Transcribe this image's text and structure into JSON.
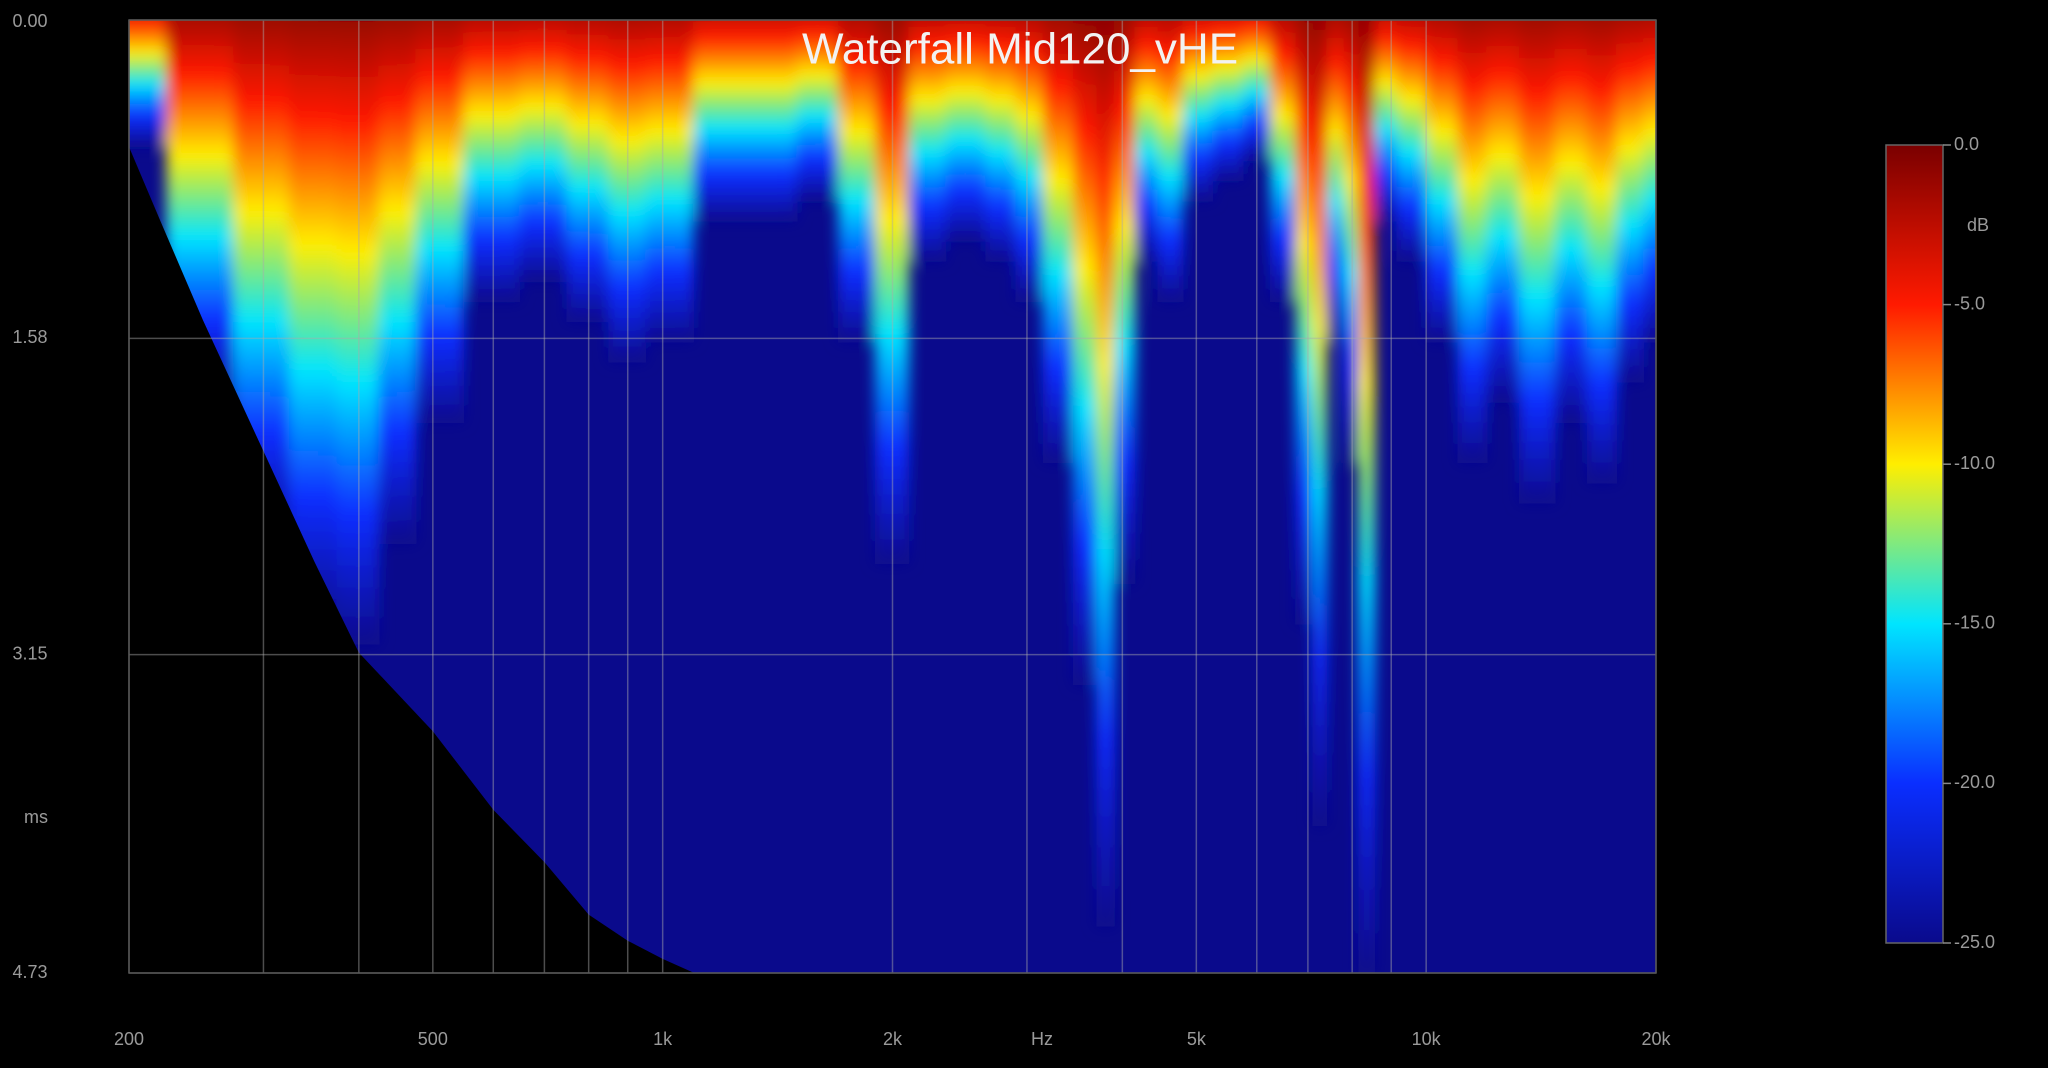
{
  "chart_data": {
    "type": "waterfall",
    "title": "Waterfall Mid120_vHE",
    "xlabel": "Hz",
    "ylabel": "ms",
    "colorbar_label": "dB",
    "xscale": "log",
    "xlim": [
      200,
      20000
    ],
    "xticks": [
      200,
      500,
      {
        "value": 1000,
        "label": "1k"
      },
      {
        "value": 2000,
        "label": "2k"
      },
      {
        "value": 5000,
        "label": "5k"
      },
      {
        "value": 10000,
        "label": "10k"
      },
      {
        "value": 20000,
        "label": "20k"
      }
    ],
    "xminor": [
      300,
      400,
      600,
      700,
      800,
      900,
      3000,
      4000,
      6000,
      7000,
      8000,
      9000
    ],
    "ylim": [
      0,
      4.73
    ],
    "yticks": [
      {
        "value": 0,
        "label": "0.00"
      },
      1.58,
      3.15,
      4.73
    ],
    "grid": true,
    "clim": [
      -25,
      0
    ],
    "cticks": [
      {
        "value": 0,
        "label": "0.0"
      },
      {
        "value": -5,
        "label": "-5.0"
      },
      {
        "value": -10,
        "label": "-10.0"
      },
      {
        "value": -15,
        "label": "-15.0"
      },
      {
        "value": -20,
        "label": "-20.0"
      },
      {
        "value": -25,
        "label": "-25.0"
      }
    ],
    "colormap": [
      "#7a0000",
      "#ff1a00",
      "#ffee00",
      "#00e5ff",
      "#0a2eff",
      "#0a0a8c"
    ],
    "decay": {
      "x": [
        200,
        250,
        300,
        350,
        400,
        450,
        500,
        600,
        700,
        800,
        900,
        1000,
        1200,
        1400,
        1600,
        1800,
        2000,
        2200,
        2500,
        2800,
        3000,
        3300,
        3600,
        3800,
        4000,
        4300,
        4600,
        5000,
        5500,
        6000,
        6500,
        7000,
        7200,
        7600,
        8000,
        8300,
        8800,
        9500,
        10500,
        11500,
        12500,
        14000,
        15500,
        17000,
        18500,
        20000
      ],
      "values": [
        0.63,
        1.9,
        2.6,
        3.0,
        3.1,
        2.6,
        2.0,
        1.4,
        1.3,
        1.5,
        1.7,
        1.6,
        1.0,
        1.0,
        0.9,
        1.6,
        2.7,
        1.2,
        1.1,
        1.2,
        1.4,
        2.2,
        3.3,
        4.5,
        2.8,
        1.2,
        1.4,
        0.9,
        0.8,
        0.7,
        1.4,
        3.0,
        4.0,
        1.6,
        2.2,
        4.73,
        1.0,
        1.2,
        1.6,
        2.2,
        1.9,
        2.4,
        2.0,
        2.3,
        1.8,
        1.6
      ]
    },
    "window": {
      "x": [
        200,
        220,
        250,
        300,
        350,
        400,
        500,
        600,
        700,
        800,
        900,
        1000,
        1100
      ],
      "values": [
        0.63,
        1.0,
        1.49,
        2.14,
        2.69,
        3.14,
        3.53,
        3.92,
        4.18,
        4.44,
        4.57,
        4.66,
        4.73
      ]
    }
  }
}
